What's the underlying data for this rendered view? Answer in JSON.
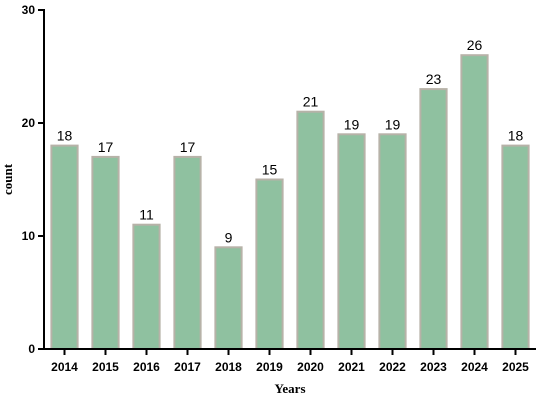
{
  "chart_data": {
    "type": "bar",
    "title": "",
    "xlabel": "Years",
    "ylabel": "count",
    "categories": [
      "2014",
      "2015",
      "2016",
      "2017",
      "2018",
      "2019",
      "2020",
      "2021",
      "2022",
      "2023",
      "2024",
      "2025"
    ],
    "values": [
      18,
      17,
      11,
      17,
      9,
      15,
      21,
      19,
      19,
      23,
      26,
      18
    ],
    "ylim": [
      0,
      30
    ],
    "yticks": [
      0,
      10,
      20,
      30
    ],
    "grid": false,
    "legend": "none",
    "colors": {
      "bar_fill": "#8fc1a0",
      "bar_edge": "#b7b2a8",
      "axis": "#000000"
    }
  }
}
